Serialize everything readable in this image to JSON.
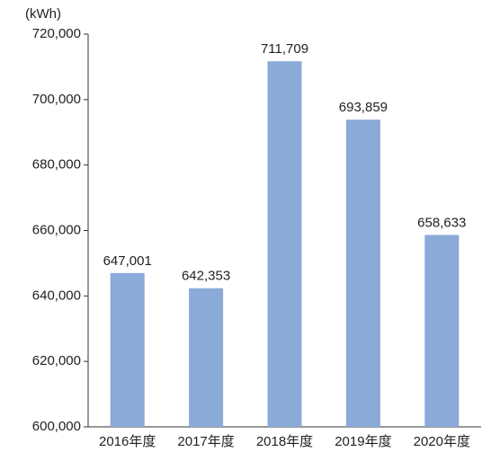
{
  "chart_data": {
    "type": "bar",
    "y_axis_label": "(kWh)",
    "categories": [
      "2016年度",
      "2017年度",
      "2018年度",
      "2019年度",
      "2020年度"
    ],
    "values": [
      647001,
      642353,
      711709,
      693859,
      658633
    ],
    "value_labels": [
      "647,001",
      "642,353",
      "711,709",
      "693,859",
      "658,633"
    ],
    "color": "#8aaad8",
    "ylim": [
      600000,
      720000
    ],
    "yticks": [
      {
        "value": 600000,
        "label": "600,000"
      },
      {
        "value": 620000,
        "label": "620,000"
      },
      {
        "value": 640000,
        "label": "640,000"
      },
      {
        "value": 660000,
        "label": "660,000"
      },
      {
        "value": 680000,
        "label": "680,000"
      },
      {
        "value": 700000,
        "label": "700,000"
      },
      {
        "value": 720000,
        "label": "720,000"
      }
    ],
    "grid": false
  }
}
